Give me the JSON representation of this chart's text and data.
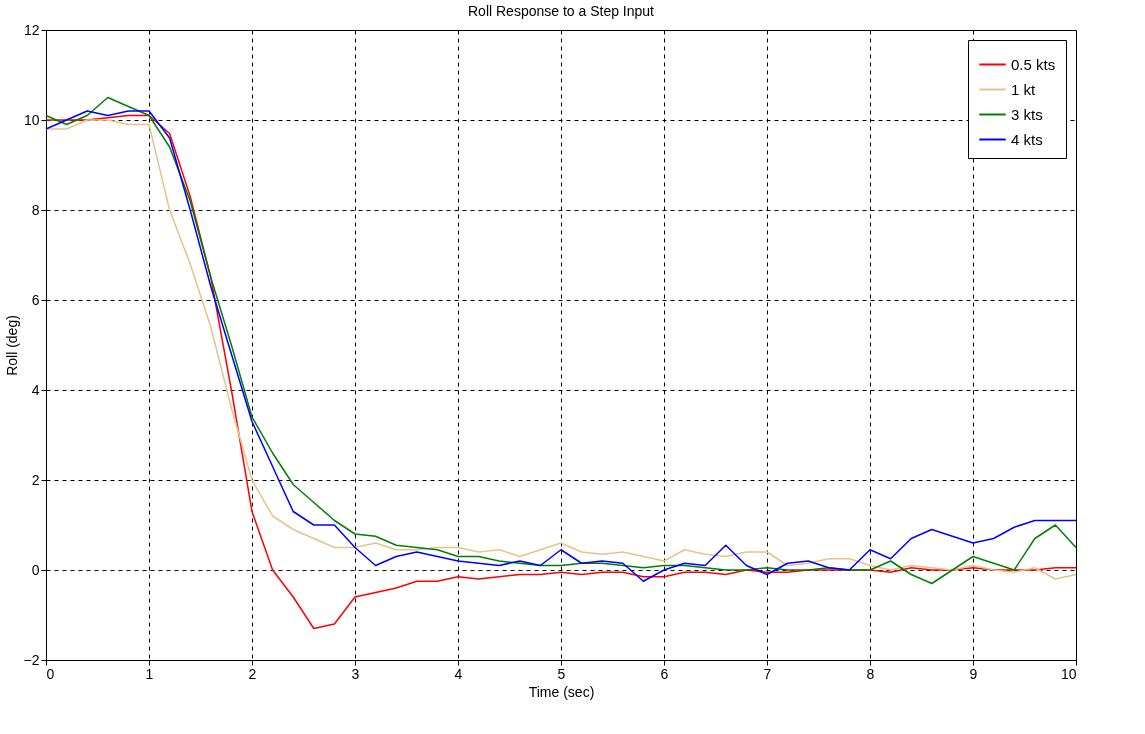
{
  "chart_data": {
    "type": "line",
    "title": "Roll Response to a Step Input",
    "xlabel": "Time (sec)",
    "ylabel": "Roll (deg)",
    "x": [
      0,
      0.2,
      0.4,
      0.6,
      0.8,
      1.0,
      1.2,
      1.4,
      1.6,
      1.8,
      2.0,
      2.2,
      2.4,
      2.6,
      2.8,
      3.0,
      3.2,
      3.4,
      3.6,
      3.8,
      4.0,
      4.2,
      4.4,
      4.6,
      4.8,
      5.0,
      5.2,
      5.4,
      5.6,
      5.8,
      6.0,
      6.2,
      6.4,
      6.6,
      6.8,
      7.0,
      7.2,
      7.4,
      7.6,
      7.8,
      8.0,
      8.2,
      8.4,
      8.6,
      8.8,
      9.0,
      9.2,
      9.4,
      9.6,
      9.8,
      10.0
    ],
    "series": [
      {
        "name": "0.5 kts",
        "color": "#ff0000",
        "values": [
          10.0,
          10.0,
          10.0,
          10.05,
          10.1,
          10.1,
          9.7,
          8.3,
          6.5,
          4.0,
          1.3,
          0.0,
          -0.6,
          -1.3,
          -1.2,
          -0.6,
          -0.5,
          -0.4,
          -0.25,
          -0.25,
          -0.15,
          -0.2,
          -0.15,
          -0.1,
          -0.1,
          -0.05,
          -0.1,
          -0.05,
          -0.05,
          -0.15,
          -0.15,
          -0.05,
          -0.05,
          -0.1,
          0.0,
          -0.05,
          -0.05,
          0.0,
          0.0,
          0.0,
          0.0,
          -0.05,
          0.05,
          0.0,
          0.0,
          0.05,
          0.0,
          0.0,
          0.0,
          0.05,
          0.05
        ]
      },
      {
        "name": "1 kt",
        "color": "#e6c38c",
        "values": [
          9.8,
          9.8,
          10.0,
          10.0,
          9.9,
          9.9,
          8.0,
          6.8,
          5.4,
          3.6,
          2.0,
          1.2,
          0.9,
          0.7,
          0.5,
          0.5,
          0.6,
          0.45,
          0.45,
          0.5,
          0.5,
          0.4,
          0.45,
          0.3,
          0.45,
          0.6,
          0.4,
          0.35,
          0.4,
          0.3,
          0.2,
          0.45,
          0.35,
          0.3,
          0.4,
          0.4,
          0.1,
          0.15,
          0.25,
          0.25,
          0.1,
          0.0,
          0.1,
          0.05,
          0.0,
          0.1,
          0.0,
          -0.05,
          0.05,
          -0.2,
          -0.1
        ]
      },
      {
        "name": "3 kts",
        "color": "#008000",
        "values": [
          10.1,
          9.9,
          10.1,
          10.5,
          10.3,
          10.1,
          9.4,
          8.2,
          6.5,
          5.0,
          3.4,
          2.6,
          1.9,
          1.5,
          1.1,
          0.8,
          0.75,
          0.55,
          0.5,
          0.45,
          0.3,
          0.3,
          0.2,
          0.15,
          0.1,
          0.1,
          0.15,
          0.15,
          0.1,
          0.05,
          0.1,
          0.1,
          0.05,
          0.0,
          0.0,
          0.05,
          0.0,
          0.0,
          0.05,
          0.0,
          0.0,
          0.2,
          -0.1,
          -0.3,
          0.0,
          0.3,
          0.15,
          0.0,
          0.7,
          1.0,
          0.5
        ]
      },
      {
        "name": "4 kts",
        "color": "#0000ff",
        "values": [
          9.8,
          10.0,
          10.2,
          10.1,
          10.2,
          10.2,
          9.6,
          8.0,
          6.3,
          4.8,
          3.3,
          2.3,
          1.3,
          1.0,
          1.0,
          0.5,
          0.1,
          0.3,
          0.4,
          0.3,
          0.2,
          0.15,
          0.1,
          0.2,
          0.1,
          0.45,
          0.15,
          0.2,
          0.15,
          -0.25,
          0.0,
          0.15,
          0.1,
          0.55,
          0.1,
          -0.1,
          0.15,
          0.2,
          0.05,
          0.0,
          0.45,
          0.25,
          0.7,
          0.9,
          0.75,
          0.6,
          0.7,
          0.95,
          1.1,
          1.1,
          1.1
        ]
      }
    ],
    "xlim": [
      0,
      10
    ],
    "xticks": [
      0,
      1,
      2,
      3,
      4,
      5,
      6,
      7,
      8,
      9,
      10
    ],
    "ylim": [
      -2,
      12
    ],
    "yticks": [
      -2,
      0,
      2,
      4,
      6,
      8,
      10,
      12
    ],
    "grid": true,
    "legend": "top right",
    "line_style": "solid",
    "marker": "none"
  }
}
